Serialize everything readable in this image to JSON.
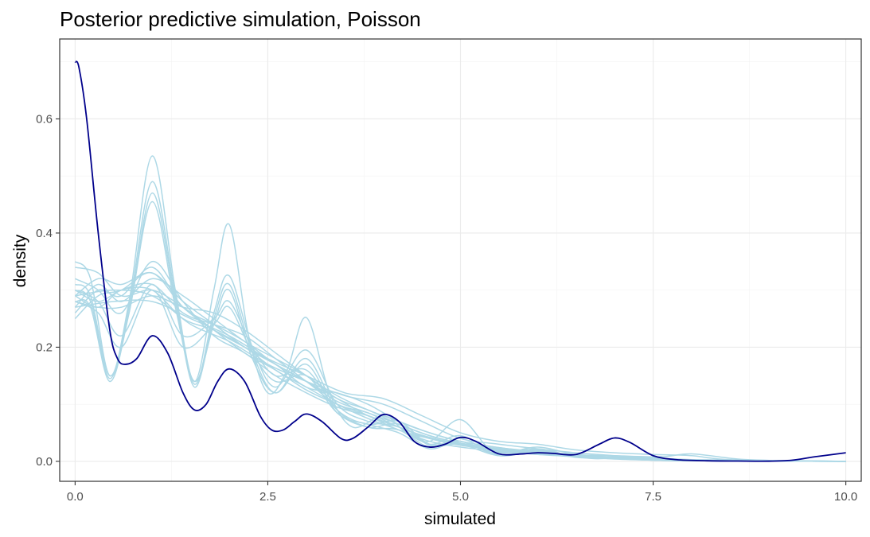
{
  "chart_data": {
    "type": "line",
    "title": "Posterior predictive simulation, Poisson",
    "xlabel": "simulated",
    "ylabel": "density",
    "xlim": [
      -0.2,
      10.2
    ],
    "ylim": [
      -0.035,
      0.74
    ],
    "x_ticks": [
      0,
      2.5,
      5,
      7.5,
      10
    ],
    "x_tick_labels": [
      "0.0",
      "2.5",
      "5.0",
      "7.5",
      "10.0"
    ],
    "y_ticks": [
      0,
      0.2,
      0.4,
      0.6
    ],
    "y_tick_labels": [
      "0.0",
      "0.2",
      "0.4",
      "0.6"
    ],
    "grid": true,
    "legend": "none",
    "colors": {
      "simulated": "#add8e6",
      "observed": "#00008b"
    },
    "observed": {
      "x": [
        0,
        0.05,
        0.15,
        0.3,
        0.45,
        0.55,
        0.65,
        0.8,
        1.0,
        1.2,
        1.4,
        1.55,
        1.7,
        1.85,
        2.0,
        2.2,
        2.4,
        2.55,
        2.7,
        2.85,
        3.0,
        3.2,
        3.45,
        3.6,
        3.8,
        4.0,
        4.2,
        4.4,
        4.6,
        4.8,
        5.0,
        5.2,
        5.5,
        5.8,
        6.0,
        6.2,
        6.5,
        6.8,
        7.0,
        7.2,
        7.5,
        7.8,
        8.2,
        8.6,
        9.0,
        9.3,
        9.6,
        10.0
      ],
      "y": [
        0.7,
        0.69,
        0.6,
        0.4,
        0.23,
        0.18,
        0.17,
        0.18,
        0.22,
        0.19,
        0.12,
        0.09,
        0.1,
        0.14,
        0.162,
        0.14,
        0.08,
        0.055,
        0.055,
        0.07,
        0.083,
        0.07,
        0.04,
        0.04,
        0.06,
        0.082,
        0.07,
        0.035,
        0.025,
        0.03,
        0.042,
        0.035,
        0.013,
        0.013,
        0.015,
        0.014,
        0.012,
        0.03,
        0.041,
        0.033,
        0.01,
        0.003,
        0.001,
        0.0005,
        0.0003,
        0.002,
        0.008,
        0.015
      ]
    },
    "series": [
      {
        "x": [
          0,
          0.2,
          0.45,
          0.7,
          1.0,
          1.3,
          1.55,
          1.8,
          2.0,
          2.25,
          2.5,
          2.75,
          3.0,
          3.3,
          3.6,
          4.0,
          4.3,
          4.6,
          5.0,
          5.4,
          5.8,
          6.0,
          6.3,
          6.7,
          7.0,
          7.5,
          8.0,
          10.0
        ],
        "y": [
          0.35,
          0.32,
          0.15,
          0.28,
          0.535,
          0.3,
          0.14,
          0.3,
          0.415,
          0.22,
          0.12,
          0.16,
          0.252,
          0.12,
          0.06,
          0.08,
          0.05,
          0.035,
          0.073,
          0.02,
          0.02,
          0.02,
          0.012,
          0.005,
          0.005,
          0.002,
          0.001,
          0.0
        ]
      },
      {
        "x": [
          0,
          0.2,
          0.45,
          0.7,
          1.0,
          1.3,
          1.55,
          1.8,
          2.0,
          2.3,
          2.6,
          3.0,
          3.4,
          3.8,
          4.2,
          4.6,
          5.0,
          5.5,
          6.0,
          6.5,
          7.0,
          7.6,
          8.0,
          8.6,
          9.2,
          10.0
        ],
        "y": [
          0.3,
          0.28,
          0.145,
          0.27,
          0.49,
          0.29,
          0.135,
          0.26,
          0.325,
          0.2,
          0.13,
          0.195,
          0.1,
          0.07,
          0.06,
          0.03,
          0.045,
          0.015,
          0.025,
          0.012,
          0.01,
          0.008,
          0.013,
          0.004,
          0.001,
          0.0
        ]
      },
      {
        "x": [
          0,
          0.2,
          0.45,
          0.7,
          1.0,
          1.3,
          1.55,
          1.8,
          2.0,
          2.3,
          2.6,
          3.0,
          3.4,
          3.8,
          4.2,
          4.6,
          5.0,
          5.5,
          6.0,
          6.5,
          7.0,
          7.6,
          8.0,
          10.0
        ],
        "y": [
          0.28,
          0.27,
          0.14,
          0.26,
          0.47,
          0.28,
          0.13,
          0.25,
          0.31,
          0.19,
          0.12,
          0.18,
          0.09,
          0.06,
          0.055,
          0.025,
          0.04,
          0.012,
          0.02,
          0.008,
          0.008,
          0.004,
          0.003,
          0.0
        ]
      },
      {
        "x": [
          0,
          0.2,
          0.45,
          0.7,
          1.0,
          1.3,
          1.55,
          1.8,
          2.0,
          2.3,
          2.6,
          3.0,
          3.4,
          3.8,
          4.2,
          4.6,
          5.0,
          5.5,
          6.0,
          6.5,
          7.0,
          7.6,
          8.0,
          10.0
        ],
        "y": [
          0.31,
          0.29,
          0.15,
          0.26,
          0.455,
          0.27,
          0.14,
          0.24,
          0.3,
          0.18,
          0.12,
          0.17,
          0.085,
          0.065,
          0.05,
          0.022,
          0.035,
          0.01,
          0.018,
          0.008,
          0.006,
          0.003,
          0.002,
          0.0
        ]
      },
      {
        "x": [
          0,
          0.3,
          0.6,
          1.0,
          1.4,
          1.8,
          2.2,
          2.6,
          3.0,
          3.4,
          3.8,
          4.2,
          4.6,
          5.0,
          5.5,
          6.0,
          6.5,
          7.0,
          7.5,
          8.0,
          10.0
        ],
        "y": [
          0.26,
          0.3,
          0.29,
          0.34,
          0.27,
          0.24,
          0.21,
          0.17,
          0.14,
          0.11,
          0.08,
          0.06,
          0.04,
          0.03,
          0.02,
          0.015,
          0.01,
          0.006,
          0.003,
          0.001,
          0.0
        ]
      },
      {
        "x": [
          0,
          0.3,
          0.6,
          1.0,
          1.4,
          1.8,
          2.2,
          2.6,
          3.0,
          3.4,
          3.8,
          4.2,
          4.6,
          5.0,
          5.5,
          6.0,
          6.5,
          7.0,
          7.5,
          8.0,
          10.0
        ],
        "y": [
          0.29,
          0.27,
          0.3,
          0.3,
          0.25,
          0.23,
          0.2,
          0.16,
          0.13,
          0.1,
          0.075,
          0.055,
          0.035,
          0.025,
          0.018,
          0.012,
          0.008,
          0.004,
          0.002,
          0.001,
          0.0
        ]
      },
      {
        "x": [
          0,
          0.3,
          0.6,
          1.0,
          1.4,
          1.8,
          2.2,
          2.6,
          3.0,
          3.4,
          3.8,
          4.2,
          4.6,
          5.0,
          5.5,
          6.0,
          6.5,
          7.0,
          7.5,
          8.0,
          10.0
        ],
        "y": [
          0.32,
          0.3,
          0.26,
          0.35,
          0.28,
          0.22,
          0.19,
          0.15,
          0.12,
          0.095,
          0.08,
          0.06,
          0.04,
          0.028,
          0.02,
          0.013,
          0.009,
          0.005,
          0.003,
          0.001,
          0.0
        ]
      },
      {
        "x": [
          0,
          0.3,
          0.6,
          1.0,
          1.4,
          1.8,
          2.2,
          2.6,
          3.0,
          3.4,
          3.8,
          4.2,
          4.6,
          5.0,
          5.5,
          6.0,
          6.5,
          7.0,
          7.5,
          8.0,
          10.0
        ],
        "y": [
          0.27,
          0.31,
          0.28,
          0.32,
          0.29,
          0.25,
          0.21,
          0.18,
          0.15,
          0.11,
          0.09,
          0.065,
          0.045,
          0.032,
          0.022,
          0.016,
          0.011,
          0.007,
          0.004,
          0.002,
          0.0
        ]
      },
      {
        "x": [
          0,
          0.3,
          0.6,
          1.0,
          1.4,
          1.8,
          2.2,
          2.6,
          3.0,
          3.4,
          3.8,
          4.2,
          4.6,
          5.0,
          5.5,
          6.0,
          6.5,
          7.0,
          7.5,
          8.0,
          10.0
        ],
        "y": [
          0.3,
          0.28,
          0.3,
          0.31,
          0.26,
          0.24,
          0.22,
          0.18,
          0.14,
          0.1,
          0.085,
          0.06,
          0.042,
          0.03,
          0.02,
          0.014,
          0.01,
          0.006,
          0.003,
          0.001,
          0.0
        ]
      },
      {
        "x": [
          0,
          0.3,
          0.6,
          1.0,
          1.4,
          1.8,
          2.2,
          2.6,
          3.0,
          3.4,
          3.8,
          4.2,
          4.6,
          5.0,
          5.5,
          6.0,
          6.5,
          7.0,
          7.5,
          8.0,
          10.0
        ],
        "y": [
          0.25,
          0.29,
          0.3,
          0.33,
          0.27,
          0.23,
          0.2,
          0.17,
          0.13,
          0.12,
          0.1,
          0.07,
          0.05,
          0.035,
          0.024,
          0.017,
          0.012,
          0.007,
          0.004,
          0.002,
          0.0
        ]
      },
      {
        "x": [
          0,
          0.3,
          0.6,
          1.0,
          1.4,
          1.8,
          2.2,
          2.6,
          3.0,
          3.4,
          3.8,
          4.2,
          4.6,
          5.0,
          5.5,
          6.0,
          6.5,
          7.0,
          7.5,
          8.0,
          10.0
        ],
        "y": [
          0.28,
          0.27,
          0.27,
          0.29,
          0.27,
          0.26,
          0.23,
          0.19,
          0.15,
          0.115,
          0.09,
          0.07,
          0.05,
          0.035,
          0.024,
          0.016,
          0.011,
          0.007,
          0.004,
          0.002,
          0.0
        ]
      },
      {
        "x": [
          0,
          0.3,
          0.6,
          1.0,
          1.4,
          1.8,
          2.2,
          2.6,
          3.0,
          3.4,
          3.8,
          4.2,
          4.6,
          5.0,
          5.5,
          6.0,
          6.5,
          7.0,
          7.5,
          8.0,
          10.0
        ],
        "y": [
          0.34,
          0.33,
          0.29,
          0.3,
          0.27,
          0.23,
          0.19,
          0.16,
          0.125,
          0.1,
          0.08,
          0.055,
          0.04,
          0.03,
          0.02,
          0.014,
          0.01,
          0.005,
          0.003,
          0.001,
          0.0
        ]
      },
      {
        "x": [
          0,
          0.3,
          0.6,
          1.0,
          1.4,
          1.8,
          2.2,
          2.6,
          3.0,
          3.4,
          3.8,
          4.2,
          4.6,
          5.0,
          5.5,
          6.0,
          6.5,
          7.0,
          7.5,
          8.0,
          10.0
        ],
        "y": [
          0.29,
          0.32,
          0.31,
          0.33,
          0.28,
          0.24,
          0.2,
          0.17,
          0.14,
          0.105,
          0.085,
          0.065,
          0.045,
          0.032,
          0.022,
          0.015,
          0.011,
          0.006,
          0.003,
          0.001,
          0.0
        ]
      },
      {
        "x": [
          0,
          0.5,
          1.0,
          1.5,
          2.0,
          2.5,
          3.0,
          3.5,
          4.0,
          4.5,
          5.0,
          5.5,
          6.0,
          6.5,
          7.0,
          7.5,
          8.0,
          8.5,
          10.0
        ],
        "y": [
          0.27,
          0.28,
          0.28,
          0.25,
          0.22,
          0.18,
          0.15,
          0.12,
          0.11,
          0.08,
          0.05,
          0.035,
          0.03,
          0.02,
          0.015,
          0.012,
          0.01,
          0.003,
          0.0
        ]
      },
      {
        "x": [
          0,
          0.5,
          1.0,
          1.5,
          2.0,
          2.5,
          3.0,
          3.5,
          4.0,
          4.5,
          5.0,
          5.5,
          6.0,
          6.5,
          7.0,
          7.5,
          8.0,
          8.5,
          10.0
        ],
        "y": [
          0.29,
          0.3,
          0.29,
          0.24,
          0.21,
          0.17,
          0.14,
          0.115,
          0.1,
          0.07,
          0.04,
          0.03,
          0.022,
          0.015,
          0.01,
          0.006,
          0.003,
          0.001,
          0.0
        ]
      },
      {
        "x": [
          0,
          0.3,
          0.6,
          1.0,
          1.4,
          1.8,
          2.0,
          2.3,
          2.6,
          3.0,
          3.4,
          3.8,
          4.2,
          4.6,
          5.0,
          5.5,
          6.0,
          6.5,
          7.0,
          7.5,
          8.0,
          10.0
        ],
        "y": [
          0.3,
          0.28,
          0.22,
          0.31,
          0.22,
          0.25,
          0.28,
          0.2,
          0.15,
          0.16,
          0.09,
          0.065,
          0.07,
          0.03,
          0.035,
          0.012,
          0.022,
          0.008,
          0.006,
          0.003,
          0.002,
          0.0
        ]
      },
      {
        "x": [
          0,
          0.3,
          0.6,
          1.0,
          1.4,
          1.8,
          2.0,
          2.3,
          2.6,
          3.0,
          3.4,
          3.8,
          4.2,
          4.6,
          5.0,
          5.5,
          6.0,
          6.5,
          7.0,
          7.5,
          8.0,
          10.0
        ],
        "y": [
          0.28,
          0.26,
          0.2,
          0.3,
          0.2,
          0.24,
          0.27,
          0.19,
          0.14,
          0.15,
          0.085,
          0.06,
          0.065,
          0.028,
          0.03,
          0.01,
          0.018,
          0.007,
          0.005,
          0.002,
          0.001,
          0.0
        ]
      }
    ]
  }
}
